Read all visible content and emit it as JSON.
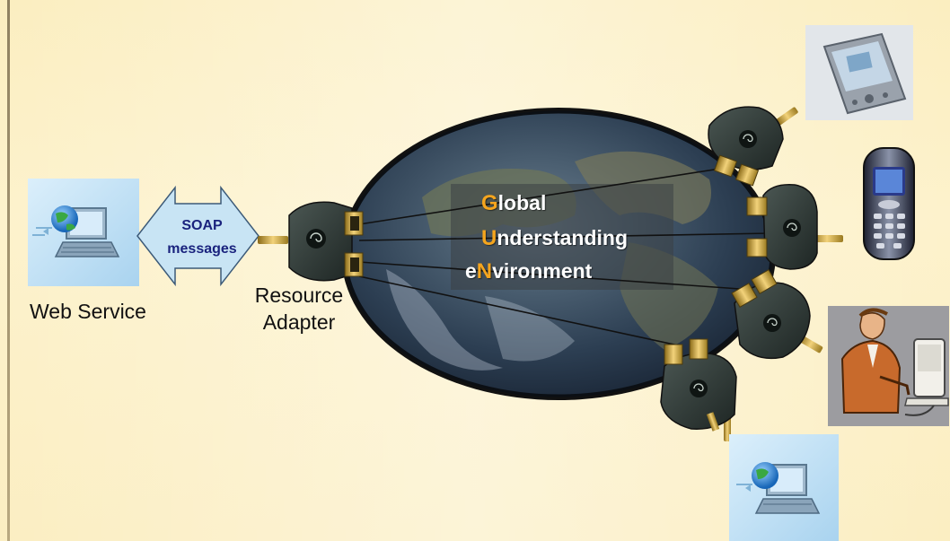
{
  "web_service_label": "Web Service",
  "soap_label_line1": "SOAP",
  "soap_label_line2": "messages",
  "resource_adapter_line1": "Resource",
  "resource_adapter_line2": "Adapter",
  "acronym": [
    {
      "initial": "G",
      "rest": "lobal"
    },
    {
      "initial": "U",
      "rest": "nderstanding"
    },
    {
      "pre": "e",
      "initial": "N",
      "rest": "vironment"
    }
  ],
  "colors": {
    "background": "#fdf1c4",
    "arrow_fill": "#c8e4f4",
    "arrow_text": "#1a237e",
    "acronym_highlight": "#f5a51e",
    "adapter_body": "#2f3936",
    "connector_gold": "#c8a030"
  },
  "icons": [
    "web-service-computer-icon",
    "pda-icon",
    "mobile-phone-icon",
    "person-at-computer-icon",
    "globe-earth-icon"
  ]
}
